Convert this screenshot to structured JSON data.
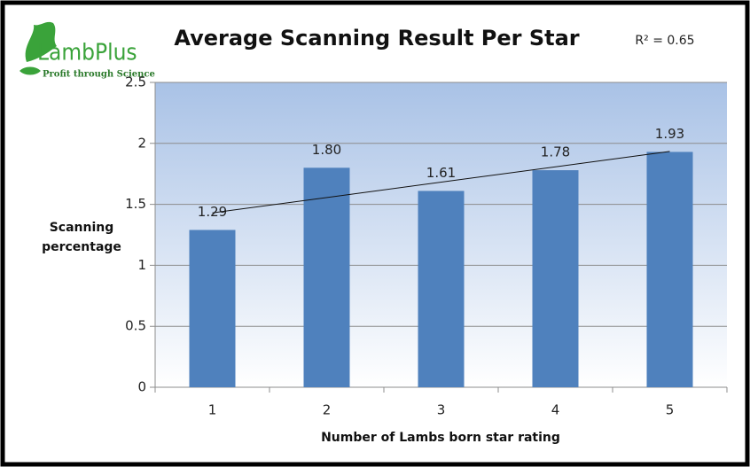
{
  "chart_data": {
    "type": "bar",
    "title": "Average Scanning Result Per Star",
    "annotation": "R² = 0.65",
    "logo": {
      "name": "LambPlus",
      "tagline": "Profit through Science"
    },
    "categories": [
      "1",
      "2",
      "3",
      "4",
      "5"
    ],
    "values": [
      1.29,
      1.8,
      1.61,
      1.78,
      1.93
    ],
    "value_labels": [
      "1.29",
      "1.80",
      "1.61",
      "1.78",
      "1.93"
    ],
    "color": "#4f81bd",
    "trendline": "linear",
    "xlabel": "Number of Lambs born star rating",
    "ylabel": "Scanning percentage",
    "ylim": [
      0,
      2.5
    ],
    "yticks": [
      0,
      0.5,
      1,
      1.5,
      2,
      2.5
    ],
    "grid": true
  }
}
